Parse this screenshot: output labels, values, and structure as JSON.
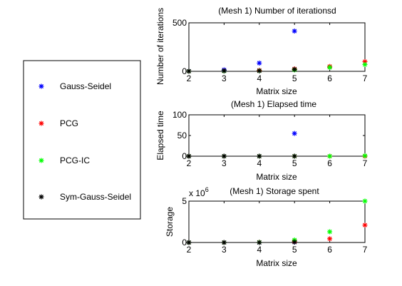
{
  "legend": {
    "entries": [
      {
        "label": "Gauss-Seidel",
        "color": "#0000ff"
      },
      {
        "label": "PCG",
        "color": "#ff0000"
      },
      {
        "label": "PCG-IC",
        "color": "#00ff00"
      },
      {
        "label": "Sym-Gauss-Seidel",
        "color": "#000000"
      }
    ],
    "placement": "left"
  },
  "chart_data": [
    {
      "type": "scatter",
      "title": "(Mesh 1) Number of iterationsd",
      "xlabel": "Matrix size",
      "ylabel": "Number of iterations",
      "xlim": [
        2,
        7
      ],
      "ylim": [
        0,
        500
      ],
      "xticks": [
        "2",
        "3",
        "4",
        "5",
        "6",
        "7"
      ],
      "yticks": [
        "0",
        "500"
      ],
      "y_multiplier": "",
      "grid": false,
      "marker": "*",
      "series": [
        {
          "name": "Gauss-Seidel",
          "x": [
            2,
            3,
            4,
            5,
            6,
            7
          ],
          "y": [
            2,
            15,
            85,
            415,
            null,
            null
          ]
        },
        {
          "name": "PCG",
          "x": [
            2,
            3,
            4,
            5,
            6,
            7
          ],
          "y": [
            1,
            5,
            10,
            25,
            50,
            100
          ]
        },
        {
          "name": "PCG-IC",
          "x": [
            2,
            3,
            4,
            5,
            6,
            7
          ],
          "y": [
            1,
            3,
            5,
            15,
            40,
            70
          ]
        },
        {
          "name": "Sym-Gauss-Seidel",
          "x": [
            2,
            3,
            4,
            5,
            6,
            7
          ],
          "y": [
            1,
            5,
            5,
            20,
            null,
            null
          ]
        }
      ]
    },
    {
      "type": "scatter",
      "title": "(Mesh 1) Elapsed time",
      "xlabel": "Matrix size",
      "ylabel": "Elapsed time",
      "xlim": [
        2,
        7
      ],
      "ylim": [
        0,
        100
      ],
      "xticks": [
        "2",
        "3",
        "4",
        "5",
        "6",
        "7"
      ],
      "yticks": [
        "0",
        "50",
        "100"
      ],
      "y_multiplier": "",
      "grid": false,
      "marker": "*",
      "series": [
        {
          "name": "Gauss-Seidel",
          "x": [
            2,
            3,
            4,
            5,
            6,
            7
          ],
          "y": [
            0,
            0,
            0,
            55,
            null,
            null
          ]
        },
        {
          "name": "PCG",
          "x": [
            2,
            3,
            4,
            5,
            6,
            7
          ],
          "y": [
            0,
            0,
            0,
            0,
            0,
            0
          ]
        },
        {
          "name": "PCG-IC",
          "x": [
            2,
            3,
            4,
            5,
            6,
            7
          ],
          "y": [
            0,
            0,
            0,
            0,
            0,
            1
          ]
        },
        {
          "name": "Sym-Gauss-Seidel",
          "x": [
            2,
            3,
            4,
            5,
            6,
            7
          ],
          "y": [
            0,
            0,
            0,
            0,
            null,
            null
          ]
        }
      ]
    },
    {
      "type": "scatter",
      "title": "(Mesh 1) Storage spent",
      "xlabel": "Matrix size",
      "ylabel": "Storage",
      "xlim": [
        2,
        7
      ],
      "ylim": [
        0,
        5
      ],
      "xticks": [
        "2",
        "3",
        "4",
        "5",
        "6",
        "7"
      ],
      "yticks": [
        "0",
        "5"
      ],
      "y_multiplier": "x 10",
      "y_multiplier_exp": "6",
      "grid": false,
      "marker": "*",
      "series": [
        {
          "name": "Gauss-Seidel",
          "x": [
            2,
            3,
            4,
            5,
            6,
            7
          ],
          "y": [
            0,
            0,
            0,
            0.05,
            null,
            null
          ]
        },
        {
          "name": "PCG",
          "x": [
            2,
            3,
            4,
            5,
            6,
            7
          ],
          "y": [
            0,
            0,
            0.02,
            0.15,
            0.45,
            2.1
          ]
        },
        {
          "name": "PCG-IC",
          "x": [
            2,
            3,
            4,
            5,
            6,
            7
          ],
          "y": [
            0,
            0,
            0.02,
            0.3,
            1.3,
            5.0
          ]
        },
        {
          "name": "Sym-Gauss-Seidel",
          "x": [
            2,
            3,
            4,
            5,
            6,
            7
          ],
          "y": [
            0,
            0,
            0,
            0.05,
            null,
            null
          ]
        }
      ]
    }
  ]
}
